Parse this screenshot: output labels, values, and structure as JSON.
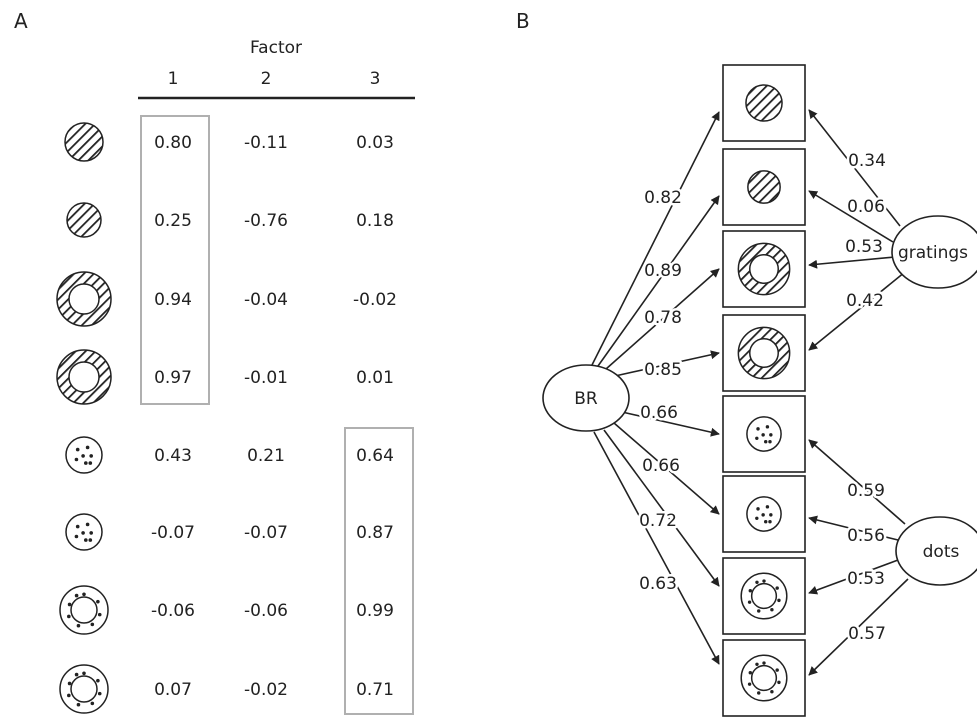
{
  "panel_a": {
    "label": "A",
    "header": "Factor",
    "columns": [
      "1",
      "2",
      "3"
    ],
    "rows": [
      {
        "stimulus": "grating-disk",
        "values": [
          "0.80",
          "-0.11",
          "0.03"
        ]
      },
      {
        "stimulus": "grating-disk-small",
        "values": [
          "0.25",
          "-0.76",
          "0.18"
        ]
      },
      {
        "stimulus": "grating-annulus",
        "values": [
          "0.94",
          "-0.04",
          "-0.02"
        ]
      },
      {
        "stimulus": "grating-annulus",
        "values": [
          "0.97",
          "-0.01",
          "0.01"
        ]
      },
      {
        "stimulus": "dots-disk",
        "values": [
          "0.43",
          "0.21",
          "0.64"
        ]
      },
      {
        "stimulus": "dots-disk",
        "values": [
          "-0.07",
          "-0.07",
          "0.87"
        ]
      },
      {
        "stimulus": "dots-annulus",
        "values": [
          "-0.06",
          "-0.06",
          "0.99"
        ]
      },
      {
        "stimulus": "dots-annulus",
        "values": [
          "0.07",
          "-0.02",
          "0.71"
        ]
      }
    ]
  },
  "panel_b": {
    "label": "B",
    "nodes": {
      "br": "BR",
      "gratings": "gratings",
      "dots": "dots"
    },
    "br_loadings": [
      "0.82",
      "0.89",
      "0.78",
      "0.85",
      "0.66",
      "0.66",
      "0.72",
      "0.63"
    ],
    "gratings_loadings": [
      "0.34",
      "0.06",
      "0.53",
      "0.42"
    ],
    "dots_loadings": [
      "0.59",
      "0.56",
      "0.53",
      "0.57"
    ]
  }
}
